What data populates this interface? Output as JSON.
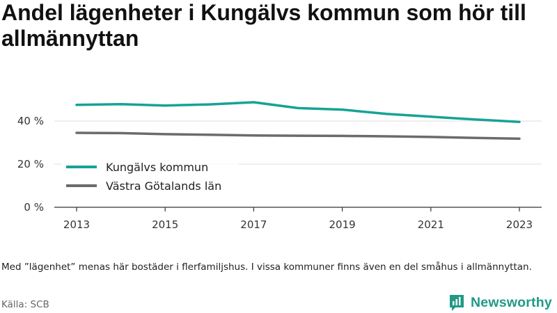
{
  "title": "Andel lägenheter i Kungälvs kommun som hör till allmännyttan",
  "note": "Med ”lägenhet” menas här bostäder i flerfamiljshus. I vissa kommuner finns även en del småhus i allmännyttan.",
  "source": "Källa: SCB",
  "brand": {
    "name": "Newsworthy",
    "color": "#1f9a88"
  },
  "chart_data": {
    "type": "line",
    "x": [
      2013,
      2014,
      2015,
      2016,
      2017,
      2018,
      2019,
      2020,
      2021,
      2022,
      2023
    ],
    "x_tick_labels": [
      "2013",
      "2015",
      "2017",
      "2019",
      "2021",
      "2023"
    ],
    "y_ticks": [
      0,
      20,
      40
    ],
    "y_tick_labels": [
      "0 %",
      "20 %",
      "40 %"
    ],
    "ylim": [
      0,
      52
    ],
    "grid": true,
    "legend_position": "lower-left",
    "series": [
      {
        "name": "Kungälvs kommun",
        "color": "#15a396",
        "values": [
          47.5,
          47.8,
          47.2,
          47.7,
          48.7,
          46.0,
          45.3,
          43.3,
          42.0,
          40.7,
          39.6
        ]
      },
      {
        "name": "Västra Götalands län",
        "color": "#6b6b6f",
        "values": [
          34.5,
          34.4,
          33.9,
          33.6,
          33.3,
          33.2,
          33.1,
          32.9,
          32.6,
          32.2,
          31.8
        ]
      }
    ]
  }
}
